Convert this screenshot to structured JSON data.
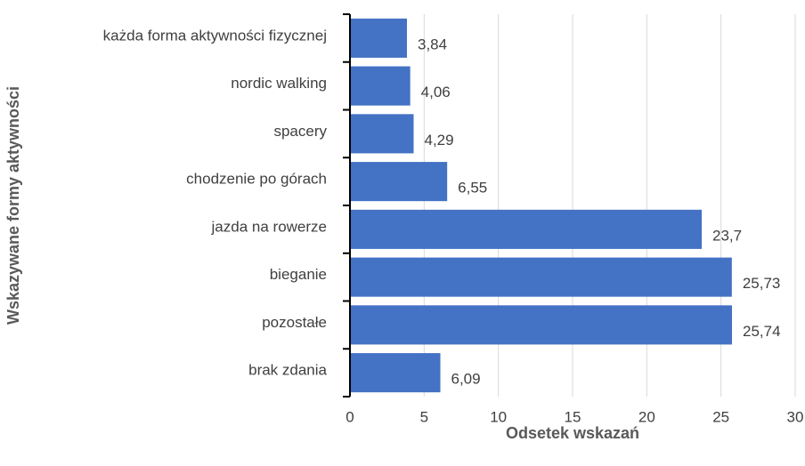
{
  "chart_data": {
    "type": "barh",
    "xlabel": "Odsetek wskazań",
    "ylabel": "Wskazywane formy aktywności",
    "categories": [
      "każda forma aktywności fizycznej",
      "nordic walking",
      "spacery",
      "chodzenie po górach",
      "jazda na rowerze",
      "bieganie",
      "pozostałe",
      "brak zdania"
    ],
    "values": [
      3.84,
      4.06,
      4.29,
      6.55,
      23.7,
      25.73,
      25.74,
      6.09
    ],
    "value_labels": [
      "3,84",
      "4,06",
      "4,29",
      "6,55",
      "23,7",
      "25,73",
      "25,74",
      "6,09"
    ],
    "color": "#4472c4",
    "xlim": [
      0,
      30
    ],
    "xticks": [
      0,
      5,
      10,
      15,
      20,
      25,
      30
    ],
    "grid": true
  }
}
